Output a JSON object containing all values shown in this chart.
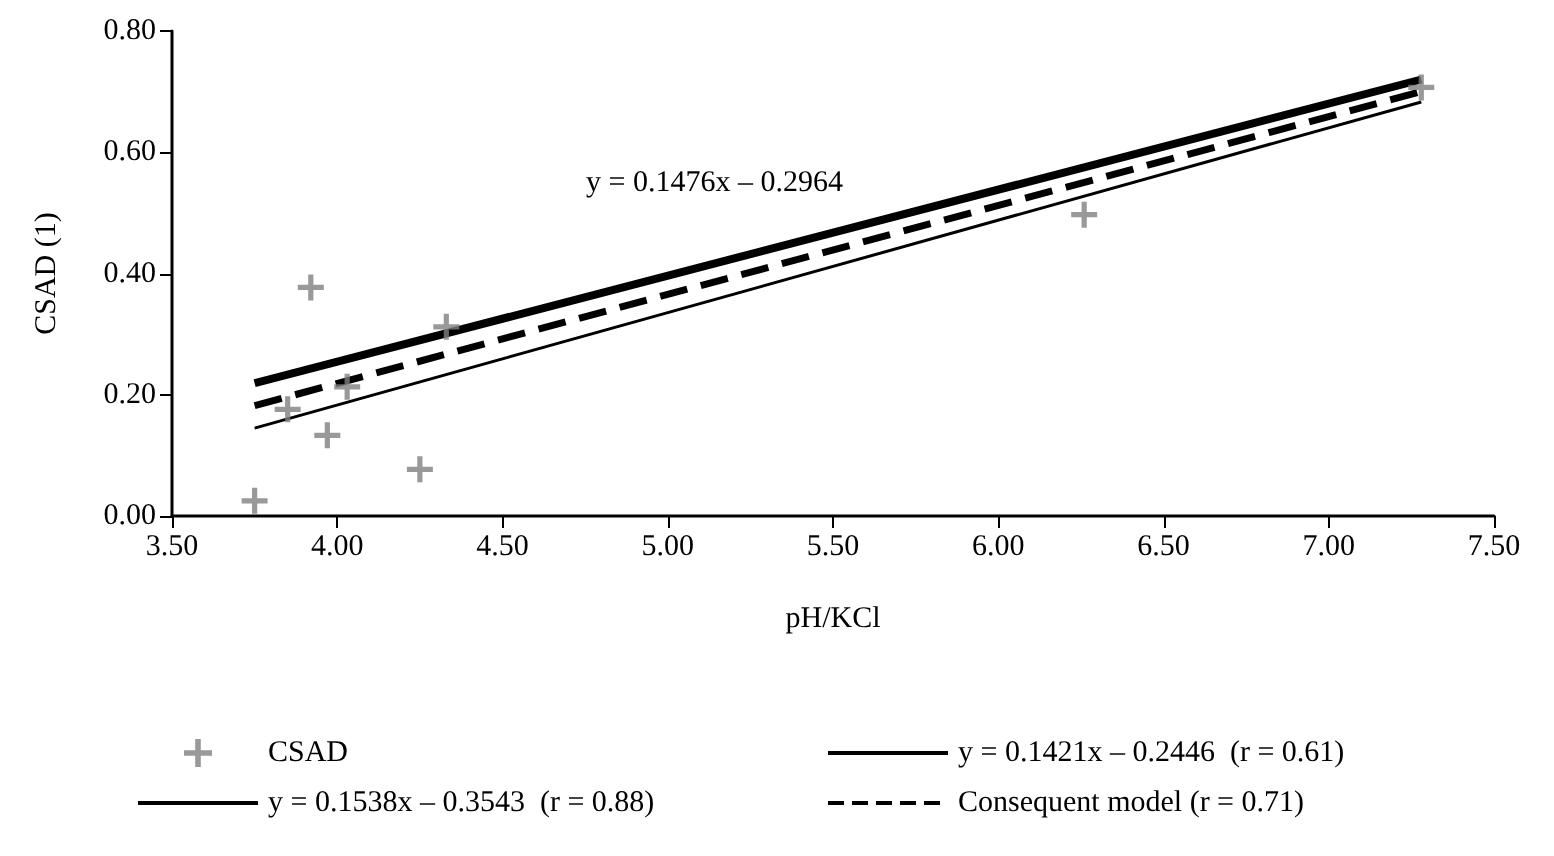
{
  "chart_data": {
    "type": "scatter",
    "xlabel": "pH/KCl",
    "ylabel": "CSAD (1)",
    "annotations": [
      "y = 0.1476x – 0.2964"
    ],
    "series": [
      {
        "name": "CSAD",
        "marker": "cross",
        "color": "#808080",
        "x": [
          3.75,
          3.85,
          3.92,
          3.97,
          4.03,
          4.25,
          4.33,
          6.26,
          7.28
        ],
        "values": [
          0.025,
          0.176,
          0.377,
          0.133,
          0.213,
          0.077,
          0.312,
          0.497,
          0.707
        ]
      },
      {
        "name": "y = 0.1421x – 0.2446  (r = 0.61)",
        "type": "line",
        "marker": "none",
        "line_style": "solid",
        "color": "#000000",
        "x": [
          3.75,
          7.28
        ],
        "values": [
          0.219,
          0.72
        ]
      },
      {
        "name": "y = 0.1538x – 0.3543  (r = 0.88)",
        "type": "line",
        "marker": "none",
        "line_style": "solid",
        "color": "#000000",
        "x": [
          3.75,
          7.28
        ],
        "values": [
          0.145,
          0.683
        ]
      },
      {
        "name": "Consequent model (r = 0.71)",
        "type": "line",
        "marker": "none",
        "line_style": "dashed",
        "color": "#000000",
        "x": [
          3.75,
          7.28
        ],
        "values": [
          0.182,
          0.7
        ]
      }
    ],
    "xlim": [
      3.5,
      7.5
    ],
    "xticks": [
      {
        "value": 3.5,
        "label": "3.50"
      },
      {
        "value": 4,
        "label": "4.00"
      },
      {
        "value": 4.5,
        "label": "4.50"
      },
      {
        "value": 5,
        "label": "5.00"
      },
      {
        "value": 5.5,
        "label": "5.50"
      },
      {
        "value": 6,
        "label": "6.00"
      },
      {
        "value": 6.5,
        "label": "6.50"
      },
      {
        "value": 7,
        "label": "7.00"
      },
      {
        "value": 7.5,
        "label": "7.50"
      }
    ],
    "ylim": [
      0,
      0.8
    ],
    "yticks": [
      {
        "value": 0,
        "label": "0.00"
      },
      {
        "value": 0.2,
        "label": "0.20"
      },
      {
        "value": 0.4,
        "label": "0.40"
      },
      {
        "value": 0.6,
        "label": "0.60"
      },
      {
        "value": 0.8,
        "label": "0.80"
      }
    ],
    "grid": false,
    "legend": "bottom"
  }
}
